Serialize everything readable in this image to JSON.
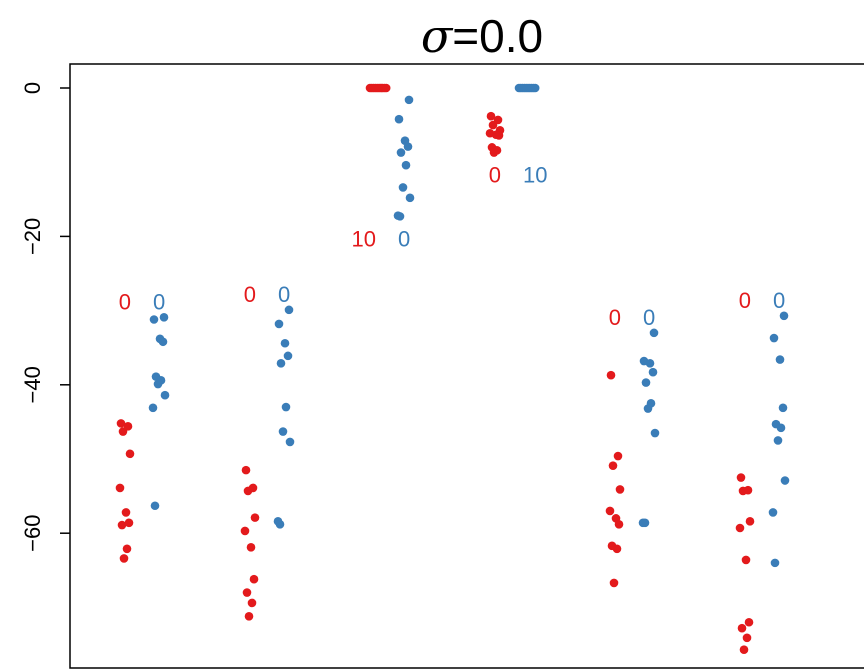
{
  "chart_data": {
    "type": "scatter",
    "title_symbol": "σ",
    "title_rest": "=0.0",
    "xlabel": "",
    "ylabel": "",
    "ylim": [
      -77.5,
      3.5
    ],
    "yticks": [
      0,
      -20,
      -40,
      -60
    ],
    "ytick_labels": [
      "0",
      "−20",
      "−40",
      "−60"
    ],
    "colors": {
      "red": "#e31a1c",
      "blue": "#3a7db8"
    },
    "groups": [
      {
        "red": [
          -45.2,
          -45.6,
          -46.3,
          -49.3,
          -53.9,
          -57.2,
          -58.6,
          -58.9,
          -62.1,
          -63.4
        ],
        "blue": [
          -30.9,
          -31.2,
          -33.8,
          -34.2,
          -38.9,
          -39.4,
          -39.9,
          -41.4,
          -43.1,
          -56.3
        ],
        "red_label": "0",
        "blue_label": "0"
      },
      {
        "red": [
          -51.5,
          -53.9,
          -54.3,
          -57.9,
          -59.7,
          -61.9,
          -66.2,
          -68.0,
          -69.4,
          -71.2
        ],
        "blue": [
          -29.9,
          -31.8,
          -34.4,
          -36.1,
          -37.1,
          -43.0,
          -46.3,
          -47.7,
          -58.4,
          -58.8
        ],
        "red_label": "0",
        "blue_label": "0"
      },
      {
        "red": [
          0,
          0,
          0,
          0,
          0,
          0,
          0,
          0,
          0,
          0
        ],
        "blue": [
          -1.6,
          -4.2,
          -7.1,
          -7.9,
          -8.7,
          -10.4,
          -13.4,
          -14.8,
          -17.2,
          -17.3
        ],
        "red_label": "10",
        "blue_label": "0"
      },
      {
        "red": [
          -3.8,
          -4.3,
          -5.0,
          -5.7,
          -6.1,
          -6.3,
          -6.4,
          -8.0,
          -8.4,
          -8.7
        ],
        "blue": [
          0,
          0,
          0,
          0,
          0,
          0,
          0,
          0,
          0,
          0
        ],
        "red_label": "0",
        "blue_label": "10"
      },
      {
        "red": [
          -38.7,
          -49.6,
          -50.9,
          -54.1,
          -57.0,
          -58.0,
          -58.8,
          -61.7,
          -62.1,
          -66.7
        ],
        "blue": [
          -33.0,
          -36.8,
          -37.1,
          -38.3,
          -39.7,
          -42.5,
          -43.2,
          -46.5,
          -58.6,
          -58.6
        ],
        "red_label": "0",
        "blue_label": "0"
      },
      {
        "red": [
          -52.5,
          -54.2,
          -54.3,
          -58.4,
          -59.3,
          -63.6,
          -72.0,
          -72.8,
          -74.1,
          -75.7
        ],
        "blue": [
          -30.7,
          -33.7,
          -36.6,
          -43.1,
          -45.3,
          -45.8,
          -47.5,
          -52.9,
          -57.2,
          -64.0
        ],
        "red_label": "0",
        "blue_label": "0"
      }
    ]
  }
}
